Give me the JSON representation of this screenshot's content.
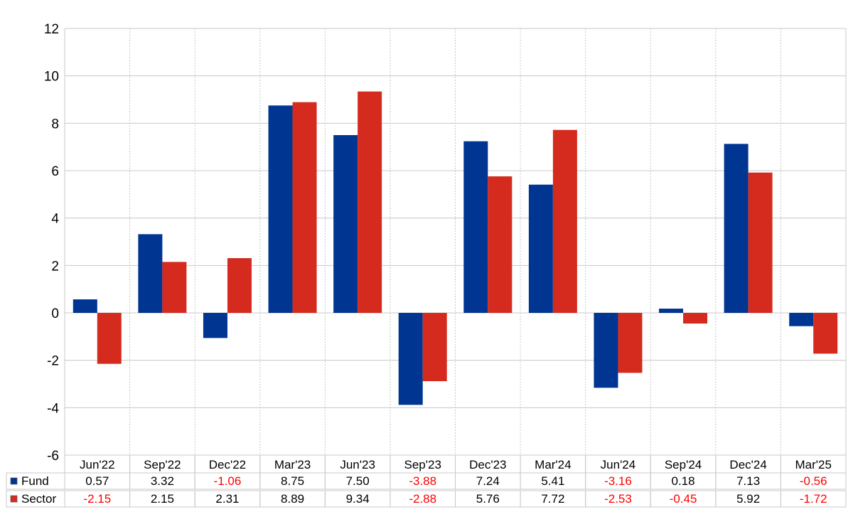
{
  "chart_data": {
    "type": "bar",
    "categories": [
      "Jun'22",
      "Sep'22",
      "Dec'22",
      "Mar'23",
      "Jun'23",
      "Sep'23",
      "Dec'23",
      "Mar'24",
      "Jun'24",
      "Sep'24",
      "Dec'24",
      "Mar'25"
    ],
    "series": [
      {
        "name": "Fund",
        "color": "#003591",
        "values": [
          0.57,
          3.32,
          -1.06,
          8.75,
          7.5,
          -3.88,
          7.24,
          5.41,
          -3.16,
          0.18,
          7.13,
          -0.56
        ]
      },
      {
        "name": "Sector",
        "color": "#d52b1e",
        "values": [
          -2.15,
          2.15,
          2.31,
          8.89,
          9.34,
          -2.88,
          5.76,
          7.72,
          -2.53,
          -0.45,
          5.92,
          -1.72
        ]
      }
    ],
    "table": {
      "Fund": [
        "0.57",
        "3.32",
        "-1.06",
        "8.75",
        "7.50",
        "-3.88",
        "7.24",
        "5.41",
        "-3.16",
        "0.18",
        "7.13",
        "-0.56"
      ],
      "Sector": [
        "-2.15",
        "2.15",
        "2.31",
        "8.89",
        "9.34",
        "-2.88",
        "5.76",
        "7.72",
        "-2.53",
        "-0.45",
        "5.92",
        "-1.72"
      ]
    },
    "ylim": [
      -6,
      12
    ],
    "yticks": [
      "12",
      "10",
      "8",
      "6",
      "4",
      "2",
      "0",
      "-2",
      "-4",
      "-6"
    ],
    "grid": true,
    "title": "",
    "xlabel": "",
    "ylabel": "",
    "negative_color": "#ff0000"
  }
}
